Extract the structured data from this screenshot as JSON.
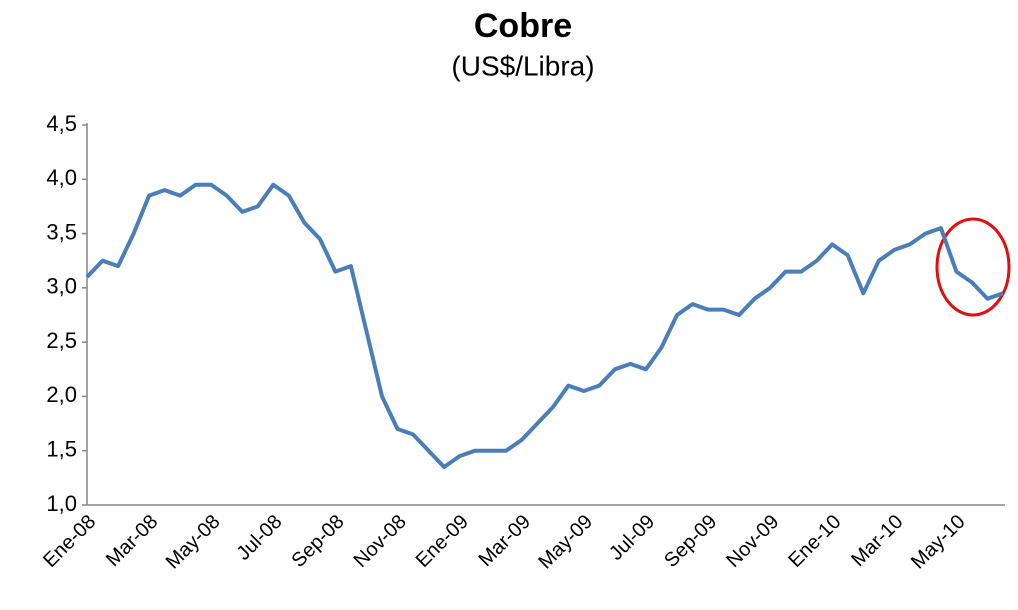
{
  "chart_data": {
    "type": "line",
    "title": "Cobre",
    "subtitle": "(US$/Libra)",
    "categories": [
      "Ene-08",
      null,
      null,
      null,
      "Mar-08",
      null,
      null,
      null,
      "May-08",
      null,
      null,
      null,
      "Jul-08",
      null,
      null,
      null,
      "Sep-08",
      null,
      null,
      null,
      "Nov-08",
      null,
      null,
      null,
      "Ene-09",
      null,
      null,
      null,
      "Mar-09",
      null,
      null,
      null,
      "May-09",
      null,
      null,
      null,
      "Jul-09",
      null,
      null,
      null,
      "Sep-09",
      null,
      null,
      null,
      "Nov-09",
      null,
      null,
      null,
      "Ene-10",
      null,
      null,
      null,
      "Mar-10",
      null,
      null,
      null,
      "May-10",
      null,
      null,
      null
    ],
    "series": [
      {
        "name": "Cobre",
        "color": "#4a7ebb",
        "values": [
          3.1,
          3.25,
          3.2,
          3.5,
          3.85,
          3.9,
          3.85,
          3.95,
          3.95,
          3.85,
          3.7,
          3.75,
          3.95,
          3.85,
          3.6,
          3.45,
          3.15,
          3.2,
          2.6,
          2.0,
          1.7,
          1.65,
          1.5,
          1.35,
          1.45,
          1.5,
          1.5,
          1.5,
          1.6,
          1.75,
          1.9,
          2.1,
          2.05,
          2.1,
          2.25,
          2.3,
          2.25,
          2.45,
          2.75,
          2.85,
          2.8,
          2.8,
          2.75,
          2.9,
          3.0,
          3.15,
          3.15,
          3.25,
          3.4,
          3.3,
          2.95,
          3.25,
          3.35,
          3.4,
          3.5,
          3.55,
          3.15,
          3.05,
          2.9,
          2.95
        ]
      }
    ],
    "ylim": [
      1.0,
      4.5
    ],
    "yticks": [
      {
        "value": 1.0,
        "label": "1,0"
      },
      {
        "value": 1.5,
        "label": "1,5"
      },
      {
        "value": 2.0,
        "label": "2,0"
      },
      {
        "value": 2.5,
        "label": "2,5"
      },
      {
        "value": 3.0,
        "label": "3,0"
      },
      {
        "value": 3.5,
        "label": "3,5"
      },
      {
        "value": 4.0,
        "label": "4,0"
      },
      {
        "value": 4.5,
        "label": "4,5"
      }
    ],
    "grid": false
  }
}
